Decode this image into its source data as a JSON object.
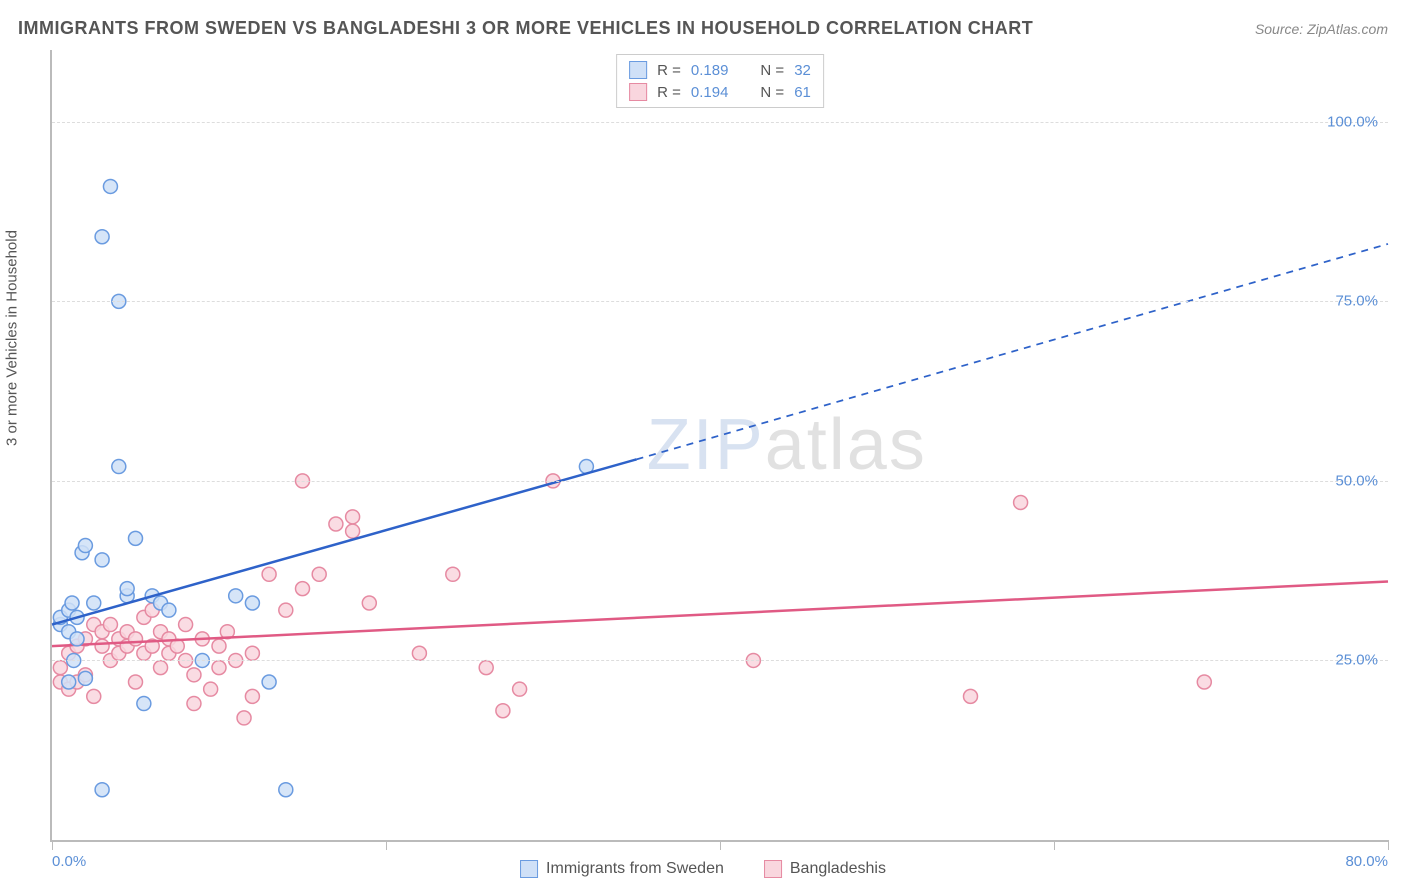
{
  "title": "IMMIGRANTS FROM SWEDEN VS BANGLADESHI 3 OR MORE VEHICLES IN HOUSEHOLD CORRELATION CHART",
  "source": "Source: ZipAtlas.com",
  "watermark": {
    "zip": "ZIP",
    "atlas": "atlas"
  },
  "chart": {
    "type": "scatter",
    "ylabel": "3 or more Vehicles in Household",
    "xlim": [
      0,
      80
    ],
    "ylim": [
      0,
      110
    ],
    "xticks": [
      0,
      20,
      40,
      60,
      80
    ],
    "xtick_labels": [
      "0.0%",
      "",
      "",
      "",
      "80.0%"
    ],
    "yticks": [
      25,
      50,
      75,
      100
    ],
    "ytick_labels": [
      "25.0%",
      "50.0%",
      "75.0%",
      "100.0%"
    ],
    "grid_color": "#dddddd",
    "axis_color": "#bbbbbb",
    "background_color": "#ffffff",
    "tick_label_color": "#5b8fd6",
    "marker_radius": 7,
    "marker_stroke_width": 1.5,
    "trend_stroke_width": 2.5,
    "series": {
      "sweden": {
        "label": "Immigrants from Sweden",
        "fill": "#cfe0f7",
        "stroke": "#6a9be0",
        "trend_color": "#2e62c9",
        "R": "0.189",
        "N": "32",
        "trend": {
          "x1": 0,
          "y1": 30,
          "x2_solid": 35,
          "y2_solid": 53,
          "x2": 80,
          "y2": 83
        },
        "points": [
          [
            0.5,
            30
          ],
          [
            0.5,
            31
          ],
          [
            1,
            32
          ],
          [
            1,
            29
          ],
          [
            1.2,
            33
          ],
          [
            1.5,
            28
          ],
          [
            1.5,
            31
          ],
          [
            1.8,
            40
          ],
          [
            2,
            41
          ],
          [
            2,
            22.5
          ],
          [
            2.5,
            33
          ],
          [
            3,
            39
          ],
          [
            3.5,
            91
          ],
          [
            3,
            84
          ],
          [
            4,
            75
          ],
          [
            4,
            52
          ],
          [
            4.5,
            34
          ],
          [
            4.5,
            35
          ],
          [
            5,
            42
          ],
          [
            5.5,
            19
          ],
          [
            6,
            34
          ],
          [
            6.5,
            33
          ],
          [
            7,
            32
          ],
          [
            9,
            25
          ],
          [
            11,
            34
          ],
          [
            12,
            33
          ],
          [
            13,
            22
          ],
          [
            14,
            7
          ],
          [
            3,
            7
          ],
          [
            32,
            52
          ],
          [
            1,
            22
          ],
          [
            1.3,
            25
          ]
        ]
      },
      "bangladesh": {
        "label": "Bangladeshis",
        "fill": "#f9d6de",
        "stroke": "#e68aa2",
        "trend_color": "#e05a84",
        "R": "0.194",
        "N": "61",
        "trend": {
          "x1": 0,
          "y1": 27,
          "x2_solid": 80,
          "y2_solid": 36,
          "x2": 80,
          "y2": 36
        },
        "points": [
          [
            0.5,
            22
          ],
          [
            0.5,
            24
          ],
          [
            1,
            21
          ],
          [
            1,
            26
          ],
          [
            1.5,
            22
          ],
          [
            1.5,
            27
          ],
          [
            2,
            23
          ],
          [
            2,
            28
          ],
          [
            2.5,
            20
          ],
          [
            2.5,
            30
          ],
          [
            3,
            27
          ],
          [
            3,
            29
          ],
          [
            3.5,
            25
          ],
          [
            3.5,
            30
          ],
          [
            4,
            26
          ],
          [
            4,
            28
          ],
          [
            4.5,
            27
          ],
          [
            4.5,
            29
          ],
          [
            5,
            22
          ],
          [
            5,
            28
          ],
          [
            5.5,
            26
          ],
          [
            5.5,
            31
          ],
          [
            6,
            27
          ],
          [
            6,
            32
          ],
          [
            6.5,
            24
          ],
          [
            6.5,
            29
          ],
          [
            7,
            26
          ],
          [
            7,
            28
          ],
          [
            7.5,
            27
          ],
          [
            8,
            25
          ],
          [
            8,
            30
          ],
          [
            8.5,
            23
          ],
          [
            9,
            28
          ],
          [
            9.5,
            21
          ],
          [
            10,
            24
          ],
          [
            10,
            27
          ],
          [
            10.5,
            29
          ],
          [
            11,
            25
          ],
          [
            11.5,
            17
          ],
          [
            12,
            26
          ],
          [
            13,
            37
          ],
          [
            14,
            32
          ],
          [
            15,
            35
          ],
          [
            15,
            50
          ],
          [
            16,
            37
          ],
          [
            17,
            44
          ],
          [
            18,
            43
          ],
          [
            18,
            45
          ],
          [
            19,
            33
          ],
          [
            22,
            26
          ],
          [
            24,
            37
          ],
          [
            26,
            24
          ],
          [
            27,
            18
          ],
          [
            28,
            21
          ],
          [
            30,
            50
          ],
          [
            42,
            25
          ],
          [
            55,
            20
          ],
          [
            58,
            47
          ],
          [
            69,
            22
          ],
          [
            12,
            20
          ],
          [
            8.5,
            19
          ]
        ]
      }
    }
  },
  "legend_top": [
    {
      "series": "sweden",
      "r_label": "R =",
      "n_label": "N ="
    },
    {
      "series": "bangladesh",
      "r_label": "R =",
      "n_label": "N ="
    }
  ]
}
